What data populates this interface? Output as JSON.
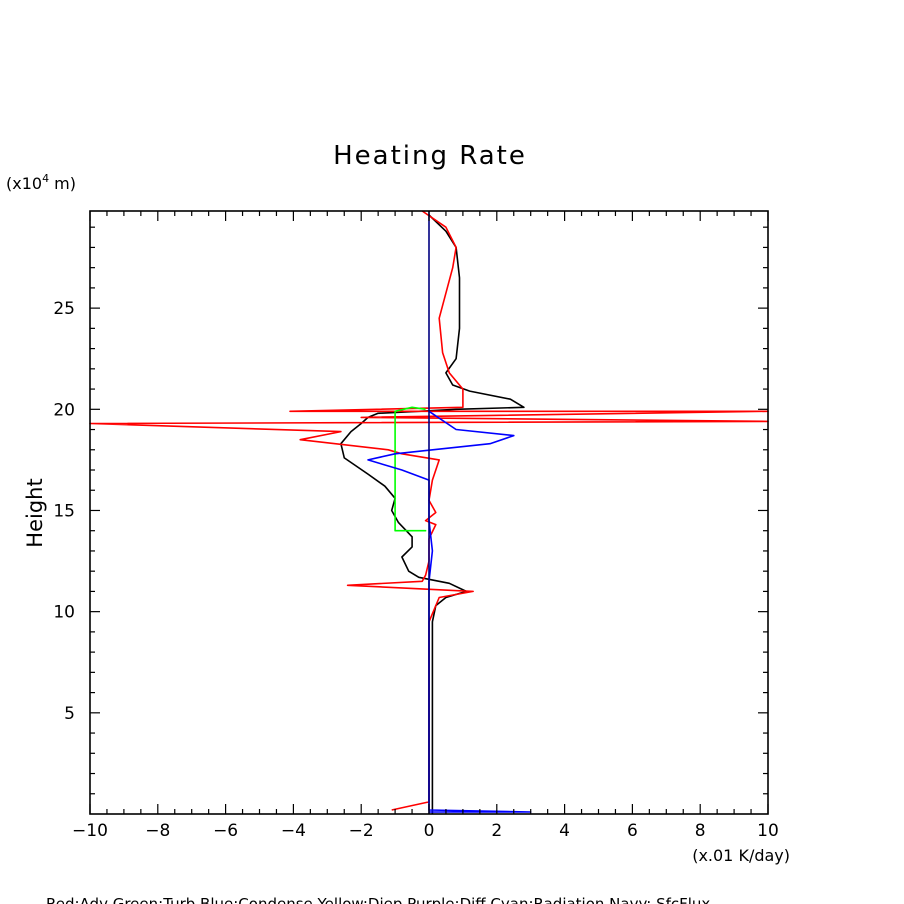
{
  "chart_data": {
    "type": "line",
    "title": "Heating Rate",
    "xlabel": "(x.01 K/day)",
    "ylabel": "Height",
    "y_unit_prefix": "(x10",
    "y_unit_exp": "4",
    "y_unit_suffix": " m)",
    "xlim": [
      -10,
      10
    ],
    "ylim": [
      0,
      29.8
    ],
    "x_ticks": [
      -10,
      -8,
      -6,
      -4,
      -2,
      0,
      2,
      4,
      6,
      8,
      10
    ],
    "x_tick_labels": [
      "−10",
      "−8",
      "−6",
      "−4",
      "−2",
      "0",
      "2",
      "4",
      "6",
      "8",
      "10"
    ],
    "y_ticks": [
      5,
      10,
      15,
      20,
      25
    ],
    "y_tick_labels": [
      "5",
      "10",
      "15",
      "20",
      "25"
    ],
    "grid": false,
    "legend_text": "Red:Adv  Green:Turb  Blue:Condense  Yellow:Diep  Purple:Diff  Cyan:Radiation  Navy: SfcFlux",
    "series": [
      {
        "color": "#000000",
        "points": [
          [
            0.1,
            0
          ],
          [
            0.1,
            2
          ],
          [
            0.1,
            5
          ],
          [
            0.1,
            8
          ],
          [
            0.1,
            9.5
          ],
          [
            0.2,
            10.3
          ],
          [
            0.5,
            10.7
          ],
          [
            1.1,
            11.0
          ],
          [
            0.6,
            11.4
          ],
          [
            -0.3,
            11.7
          ],
          [
            -0.6,
            12.0
          ],
          [
            -0.8,
            12.7
          ],
          [
            -0.5,
            13.2
          ],
          [
            -0.5,
            13.7
          ],
          [
            -0.9,
            14.4
          ],
          [
            -1.1,
            15.0
          ],
          [
            -1.0,
            15.6
          ],
          [
            -1.3,
            16.2
          ],
          [
            -1.8,
            16.8
          ],
          [
            -2.5,
            17.6
          ],
          [
            -2.6,
            18.3
          ],
          [
            -2.3,
            18.9
          ],
          [
            -2.0,
            19.3
          ],
          [
            -1.8,
            19.6
          ],
          [
            -1.5,
            19.8
          ],
          [
            -0.3,
            19.9
          ],
          [
            0.8,
            20.0
          ],
          [
            2.8,
            20.1
          ],
          [
            2.4,
            20.5
          ],
          [
            1.2,
            20.9
          ],
          [
            0.7,
            21.2
          ],
          [
            0.5,
            21.8
          ],
          [
            0.8,
            22.5
          ],
          [
            0.9,
            24.0
          ],
          [
            0.9,
            26.5
          ],
          [
            0.8,
            28.0
          ],
          [
            0.5,
            28.8
          ],
          [
            0.0,
            29.6
          ]
        ]
      },
      {
        "color": "#ff0000",
        "points": [
          [
            -1.1,
            0.2
          ],
          [
            0.0,
            0.6
          ],
          [
            0.0,
            5.0
          ],
          [
            0.0,
            9.5
          ],
          [
            0.3,
            10.7
          ],
          [
            1.3,
            11.0
          ],
          [
            -2.4,
            11.3
          ],
          [
            -0.2,
            11.5
          ],
          [
            -0.1,
            11.8
          ],
          [
            0.0,
            12.5
          ],
          [
            0.0,
            13.6
          ],
          [
            0.2,
            14.3
          ],
          [
            -0.1,
            14.5
          ],
          [
            0.2,
            14.9
          ],
          [
            0.0,
            15.5
          ],
          [
            0.1,
            16.5
          ],
          [
            0.3,
            17.5
          ],
          [
            -0.8,
            17.8
          ],
          [
            -1.2,
            18.0
          ],
          [
            -3.8,
            18.5
          ],
          [
            -2.6,
            18.9
          ],
          [
            -10.0,
            19.3
          ],
          [
            10.0,
            19.4
          ],
          [
            -2.0,
            19.6
          ],
          [
            10.0,
            19.9
          ],
          [
            -4.1,
            19.9
          ],
          [
            1.0,
            20.1
          ],
          [
            1.0,
            21.0
          ],
          [
            0.6,
            21.8
          ],
          [
            0.4,
            22.8
          ],
          [
            0.3,
            24.5
          ],
          [
            0.7,
            27.0
          ],
          [
            0.8,
            28.0
          ],
          [
            0.5,
            29.0
          ],
          [
            -0.2,
            29.8
          ]
        ]
      },
      {
        "color": "#00ff00",
        "points": [
          [
            -1.0,
            14.0
          ],
          [
            -0.1,
            14.0
          ],
          [
            -1.0,
            14.0
          ],
          [
            -1.0,
            19.9
          ],
          [
            -0.5,
            20.1
          ],
          [
            -0.1,
            20.0
          ]
        ]
      },
      {
        "color": "#0000ff",
        "points": [
          [
            0.0,
            0.1
          ],
          [
            3.0,
            0.1
          ],
          [
            0.0,
            0.2
          ],
          [
            0.0,
            10.0
          ],
          [
            0.0,
            11.5
          ],
          [
            0.1,
            13.0
          ],
          [
            0.0,
            14.5
          ],
          [
            0.0,
            16.5
          ],
          [
            -0.8,
            17.0
          ],
          [
            -1.8,
            17.5
          ],
          [
            -1.0,
            17.8
          ],
          [
            1.8,
            18.3
          ],
          [
            2.5,
            18.7
          ],
          [
            0.8,
            19.0
          ],
          [
            0.0,
            19.9
          ]
        ]
      },
      {
        "color": "#000080",
        "points": [
          [
            0.0,
            0.0
          ],
          [
            0.0,
            29.8
          ]
        ]
      }
    ]
  }
}
